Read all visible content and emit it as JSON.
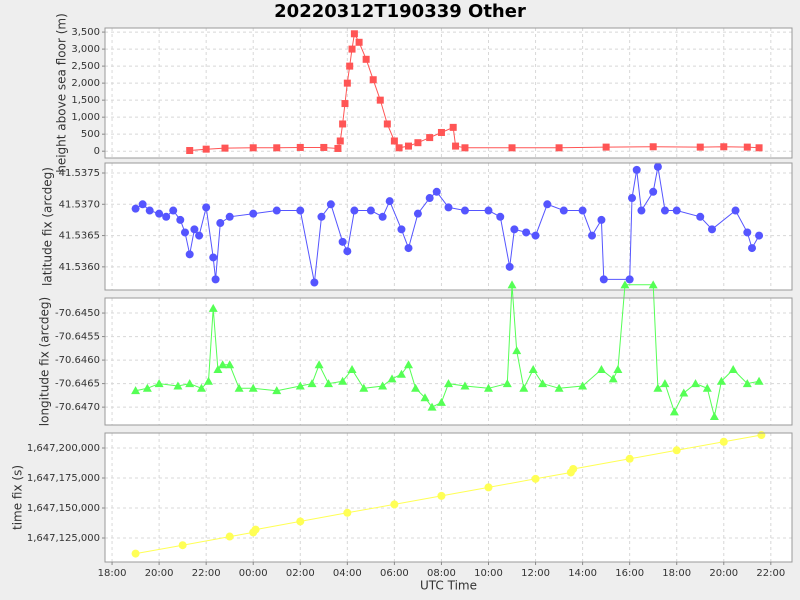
{
  "chart_data": [
    {
      "type": "line",
      "title": "20220312T190339 Other",
      "ylabel": "height above sea floor (m)",
      "marker": "square",
      "xlim": [
        17.7,
        46.9
      ],
      "ylim": [
        -200,
        3620
      ],
      "yticks": [
        0,
        500,
        {
          "value": 1000,
          "label": "1,000"
        },
        {
          "value": 1500,
          "label": "1,500"
        },
        {
          "value": 2000,
          "label": "2,000"
        },
        {
          "value": 2500,
          "label": "2,500"
        },
        {
          "value": 3000,
          "label": "3,000"
        },
        {
          "value": 3500,
          "label": "3,500"
        }
      ],
      "series": [
        {
          "color": "#ff5555",
          "x": [
            21.3,
            22.0,
            22.8,
            24,
            25,
            26,
            27,
            27.6,
            27.7,
            27.8,
            27.9,
            28.0,
            28.1,
            28.2,
            28.3,
            28.5,
            28.8,
            29.1,
            29.4,
            29.7,
            30.0,
            30.2,
            30.6,
            31.0,
            31.5,
            32.0,
            32.5,
            32.6,
            33,
            35,
            37,
            39,
            41,
            43,
            44,
            45,
            45.5
          ],
          "values": [
            20,
            60,
            90,
            100,
            100,
            110,
            110,
            80,
            300,
            800,
            1400,
            2000,
            2500,
            3000,
            3450,
            3200,
            2700,
            2100,
            1500,
            800,
            300,
            100,
            150,
            250,
            400,
            550,
            700,
            150,
            100,
            100,
            100,
            120,
            130,
            120,
            130,
            120,
            100
          ]
        }
      ]
    },
    {
      "type": "line",
      "ylabel": "latitude fix (arcdeg)",
      "marker": "circle",
      "xlim": [
        17.7,
        46.9
      ],
      "ylim": [
        41.53563,
        41.53766
      ],
      "yticks": [
        {
          "value": 41.536,
          "label": "41.5360"
        },
        41.5365,
        {
          "value": 41.537,
          "label": "41.5370"
        },
        41.5375
      ],
      "series": [
        {
          "color": "#5555ff",
          "x": [
            19.0,
            19.3,
            19.6,
            20.0,
            20.3,
            20.6,
            20.9,
            21.1,
            21.3,
            21.5,
            21.7,
            22.0,
            22.3,
            22.4,
            22.6,
            23.0,
            24,
            25,
            26,
            26.6,
            26.9,
            27.3,
            27.8,
            28.0,
            28.3,
            29,
            29.5,
            29.8,
            30.3,
            30.6,
            31.0,
            31.5,
            31.8,
            32.3,
            33,
            34,
            34.5,
            34.9,
            35.1,
            35.6,
            36.0,
            36.5,
            37.2,
            38,
            38.4,
            38.8,
            38.9,
            40.0,
            40.1,
            40.3,
            40.5,
            41.0,
            41.2,
            41.5,
            42,
            43,
            43.5,
            44.5,
            45.0,
            45.2,
            45.5
          ],
          "values": [
            41.53693,
            41.537,
            41.5369,
            41.53685,
            41.5368,
            41.5369,
            41.53675,
            41.53655,
            41.5362,
            41.5366,
            41.5365,
            41.53695,
            41.53615,
            41.5358,
            41.5367,
            41.5368,
            41.53685,
            41.5369,
            41.5369,
            41.53575,
            41.5368,
            41.537,
            41.5364,
            41.53625,
            41.5369,
            41.5369,
            41.5368,
            41.53705,
            41.5366,
            41.5363,
            41.53685,
            41.5371,
            41.5372,
            41.53695,
            41.5369,
            41.5369,
            41.5368,
            41.536,
            41.5366,
            41.53655,
            41.5365,
            41.537,
            41.5369,
            41.5369,
            41.5365,
            41.53675,
            41.5358,
            41.5358,
            41.5371,
            41.53755,
            41.5369,
            41.5372,
            41.5376,
            41.5369,
            41.5369,
            41.5368,
            41.5366,
            41.5369,
            41.53655,
            41.5363,
            41.5365
          ]
        }
      ]
    },
    {
      "type": "line",
      "ylabel": "longitude fix (arcdeg)",
      "marker": "triangle",
      "xlim": [
        17.7,
        46.9
      ],
      "ylim": [
        -70.64738,
        -70.64468
      ],
      "yticks": [
        {
          "value": -70.645,
          "label": "-70.6450"
        },
        -70.6455,
        {
          "value": -70.646,
          "label": "-70.6460"
        },
        -70.6465,
        {
          "value": -70.647,
          "label": "-70.6470"
        }
      ],
      "series": [
        {
          "color": "#55ff55",
          "x": [
            19.0,
            19.5,
            20.0,
            20.8,
            21.3,
            21.8,
            22.1,
            22.3,
            22.5,
            22.7,
            23.0,
            23.4,
            24,
            25,
            26,
            26.5,
            26.8,
            27.2,
            27.8,
            28.2,
            28.7,
            29.5,
            29.9,
            30.3,
            30.6,
            30.9,
            31.3,
            31.6,
            32.0,
            32.3,
            33,
            34,
            34.8,
            35.0,
            35.2,
            35.5,
            35.9,
            36.3,
            37,
            38,
            38.8,
            39.3,
            39.5,
            39.8,
            41.0,
            41.2,
            41.5,
            41.9,
            42.3,
            42.8,
            43.3,
            43.6,
            43.9,
            44.4,
            45,
            45.5
          ],
          "values": [
            -70.64665,
            -70.6466,
            -70.6465,
            -70.64655,
            -70.6465,
            -70.6466,
            -70.64645,
            -70.6449,
            -70.6462,
            -70.6461,
            -70.6461,
            -70.6466,
            -70.6466,
            -70.64665,
            -70.64655,
            -70.6465,
            -70.6461,
            -70.6465,
            -70.64645,
            -70.6462,
            -70.6466,
            -70.64655,
            -70.6464,
            -70.6463,
            -70.6461,
            -70.6466,
            -70.6468,
            -70.647,
            -70.6469,
            -70.6465,
            -70.64655,
            -70.6466,
            -70.6465,
            -70.6444,
            -70.6458,
            -70.6466,
            -70.6462,
            -70.6465,
            -70.6466,
            -70.64655,
            -70.6462,
            -70.6464,
            -70.6462,
            -70.6444,
            -70.6444,
            -70.6466,
            -70.6465,
            -70.6471,
            -70.6467,
            -70.6465,
            -70.6466,
            -70.6472,
            -70.64645,
            -70.6462,
            -70.6465,
            -70.64645
          ]
        }
      ]
    },
    {
      "type": "line",
      "ylabel": "time fix (s)",
      "xlabel": "UTC Time",
      "marker": "circle",
      "xlim": [
        17.7,
        46.9
      ],
      "ylim": [
        1647105000,
        1647212500
      ],
      "xticks": [
        {
          "value": 18,
          "label": "18:00"
        },
        {
          "value": 20,
          "label": "20:00"
        },
        {
          "value": 22,
          "label": "22:00"
        },
        {
          "value": 24,
          "label": "00:00"
        },
        {
          "value": 26,
          "label": "02:00"
        },
        {
          "value": 28,
          "label": "04:00"
        },
        {
          "value": 30,
          "label": "06:00"
        },
        {
          "value": 32,
          "label": "08:00"
        },
        {
          "value": 34,
          "label": "10:00"
        },
        {
          "value": 36,
          "label": "12:00"
        },
        {
          "value": 38,
          "label": "14:00"
        },
        {
          "value": 40,
          "label": "16:00"
        },
        {
          "value": 42,
          "label": "18:00"
        },
        {
          "value": 44,
          "label": "20:00"
        },
        {
          "value": 46,
          "label": "22:00"
        }
      ],
      "yticks": [
        {
          "value": 1647125000,
          "label": "1,647,125,000"
        },
        {
          "value": 1647150000,
          "label": "1,647,150,000"
        },
        {
          "value": 1647175000,
          "label": "1,647,175,000"
        },
        {
          "value": 1647200000,
          "label": "1,647,200,000"
        }
      ],
      "series": [
        {
          "color": "#ffff55",
          "x": [
            19.0,
            21,
            23,
            24.0,
            24.1,
            26,
            28,
            30,
            32,
            34,
            36,
            37.5,
            37.6,
            40,
            42,
            44,
            45.6
          ],
          "values": [
            1647112000,
            1647119000,
            1647126200,
            1647129700,
            1647132000,
            1647138800,
            1647146000,
            1647153000,
            1647160100,
            1647167200,
            1647174300,
            1647179600,
            1647182500,
            1647191000,
            1647198100,
            1647205200,
            1647210800
          ]
        }
      ]
    }
  ]
}
